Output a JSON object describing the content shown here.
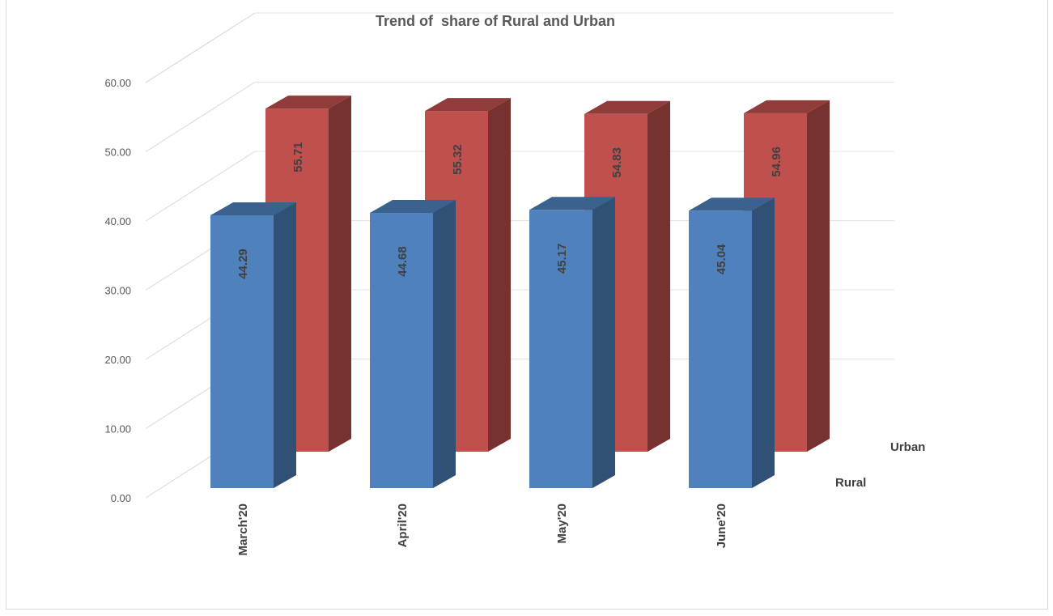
{
  "chart_data": {
    "type": "bar",
    "style": "3d-column",
    "title": "Trend of  share of Rural and Urban",
    "categories": [
      "March'20",
      "April'20",
      "May'20",
      "June'20"
    ],
    "series": [
      {
        "name": "Rural",
        "values": [
          44.29,
          44.68,
          45.17,
          45.04
        ],
        "color": "#4F81BD"
      },
      {
        "name": "Urban",
        "values": [
          55.71,
          55.32,
          54.83,
          54.96
        ],
        "color": "#C0504D"
      }
    ],
    "ylim": [
      0,
      60
    ],
    "yticks": [
      "0.00",
      "10.00",
      "20.00",
      "30.00",
      "40.00",
      "50.00",
      "60.00"
    ],
    "grid": true,
    "data_labels": true,
    "data_label_rotation": "vertical"
  }
}
